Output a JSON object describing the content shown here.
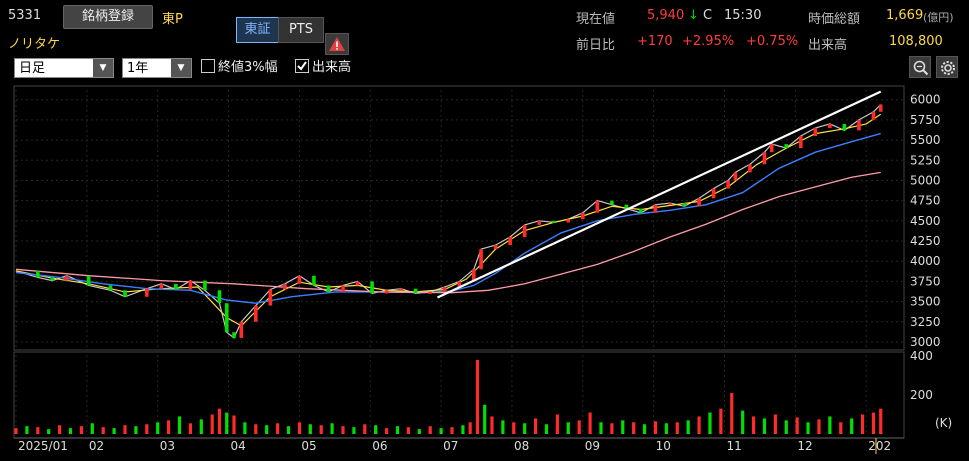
{
  "stock": {
    "code": "5331",
    "register_label": "銘柄登録",
    "market": "東P",
    "name": "ノリタケ"
  },
  "exchange_tabs": {
    "tse": "東証",
    "pts": "PTS"
  },
  "quote": {
    "price_label": "現在値",
    "price": "5,940",
    "direction": "↓",
    "flag": "C",
    "time": "15:30",
    "change_label": "前日比",
    "change": "+170",
    "change_pct": "+2.95%",
    "change_pct2": "+0.75%",
    "mcap_label": "時価総額",
    "mcap": "1,669",
    "mcap_unit": "(億円)",
    "volume_label": "出来高",
    "volume": "108,800"
  },
  "controls": {
    "period": "日足",
    "range": "1年",
    "opt1": "終値3%幅",
    "opt1_checked": false,
    "opt2": "出来高",
    "opt2_checked": true
  },
  "icons": {
    "warning": "warning-icon",
    "zoom": "zoom-icon",
    "settings": "gear-icon"
  },
  "colors": {
    "up": "#ff2a2a",
    "down": "#00e000",
    "ma_short": "#ffe040",
    "ma_mid": "#3a7fff",
    "ma_long": "#ff9aa8",
    "trendline": "#ffffff"
  },
  "chart_data": {
    "type": "line",
    "y_ticks": [
      "6000",
      "5750",
      "5500",
      "5250",
      "5000",
      "4750",
      "4500",
      "4250",
      "4000",
      "3750",
      "3500",
      "3250",
      "3000"
    ],
    "ylim": [
      2950,
      6120
    ],
    "x_ticks": [
      "2025/01",
      "02",
      "03",
      "04",
      "05",
      "06",
      "07",
      "08",
      "09",
      "10",
      "11",
      "12",
      "202"
    ],
    "volume_ticks": [
      "400",
      "200"
    ],
    "volume_unit": "(K)",
    "volume_ylim": [
      0,
      400
    ],
    "price_series": [
      {
        "name": "close",
        "points": [
          [
            0,
            3880
          ],
          [
            6,
            3800
          ],
          [
            10,
            3760
          ],
          [
            14,
            3820
          ],
          [
            20,
            3700
          ],
          [
            26,
            3640
          ],
          [
            30,
            3560
          ],
          [
            36,
            3660
          ],
          [
            40,
            3720
          ],
          [
            44,
            3650
          ],
          [
            48,
            3760
          ],
          [
            52,
            3640
          ],
          [
            56,
            3480
          ],
          [
            58,
            3120
          ],
          [
            60,
            3050
          ],
          [
            62,
            3250
          ],
          [
            66,
            3450
          ],
          [
            70,
            3650
          ],
          [
            74,
            3720
          ],
          [
            78,
            3820
          ],
          [
            82,
            3700
          ],
          [
            86,
            3620
          ],
          [
            90,
            3700
          ],
          [
            94,
            3750
          ],
          [
            98,
            3600
          ],
          [
            102,
            3640
          ],
          [
            106,
            3660
          ],
          [
            110,
            3600
          ],
          [
            114,
            3620
          ],
          [
            118,
            3680
          ],
          [
            122,
            3750
          ],
          [
            126,
            3900
          ],
          [
            128,
            4150
          ],
          [
            132,
            4200
          ],
          [
            136,
            4300
          ],
          [
            140,
            4450
          ],
          [
            144,
            4500
          ],
          [
            148,
            4480
          ],
          [
            152,
            4520
          ],
          [
            156,
            4600
          ],
          [
            160,
            4750
          ],
          [
            164,
            4700
          ],
          [
            168,
            4650
          ],
          [
            172,
            4600
          ],
          [
            176,
            4700
          ],
          [
            180,
            4720
          ],
          [
            184,
            4680
          ],
          [
            188,
            4780
          ],
          [
            192,
            4900
          ],
          [
            196,
            5000
          ],
          [
            198,
            5100
          ],
          [
            202,
            5200
          ],
          [
            206,
            5350
          ],
          [
            208,
            5450
          ],
          [
            212,
            5400
          ],
          [
            216,
            5550
          ],
          [
            220,
            5650
          ],
          [
            224,
            5700
          ],
          [
            228,
            5620
          ],
          [
            232,
            5750
          ],
          [
            236,
            5850
          ],
          [
            238,
            5940
          ]
        ]
      },
      {
        "name": "ma_short",
        "points": [
          [
            0,
            3880
          ],
          [
            10,
            3790
          ],
          [
            20,
            3720
          ],
          [
            30,
            3620
          ],
          [
            40,
            3660
          ],
          [
            50,
            3680
          ],
          [
            58,
            3300
          ],
          [
            62,
            3200
          ],
          [
            70,
            3560
          ],
          [
            78,
            3740
          ],
          [
            86,
            3680
          ],
          [
            94,
            3700
          ],
          [
            102,
            3640
          ],
          [
            110,
            3620
          ],
          [
            118,
            3650
          ],
          [
            124,
            3780
          ],
          [
            128,
            3960
          ],
          [
            132,
            4150
          ],
          [
            140,
            4380
          ],
          [
            148,
            4480
          ],
          [
            156,
            4560
          ],
          [
            164,
            4680
          ],
          [
            172,
            4640
          ],
          [
            180,
            4690
          ],
          [
            188,
            4740
          ],
          [
            196,
            4920
          ],
          [
            204,
            5200
          ],
          [
            212,
            5400
          ],
          [
            220,
            5580
          ],
          [
            228,
            5640
          ],
          [
            234,
            5700
          ],
          [
            238,
            5820
          ]
        ]
      },
      {
        "name": "ma_mid",
        "points": [
          [
            0,
            3860
          ],
          [
            12,
            3800
          ],
          [
            24,
            3720
          ],
          [
            36,
            3660
          ],
          [
            48,
            3640
          ],
          [
            58,
            3520
          ],
          [
            66,
            3480
          ],
          [
            76,
            3560
          ],
          [
            88,
            3620
          ],
          [
            100,
            3620
          ],
          [
            112,
            3610
          ],
          [
            120,
            3630
          ],
          [
            126,
            3700
          ],
          [
            132,
            3850
          ],
          [
            140,
            4100
          ],
          [
            150,
            4350
          ],
          [
            160,
            4500
          ],
          [
            170,
            4580
          ],
          [
            180,
            4630
          ],
          [
            190,
            4700
          ],
          [
            200,
            4850
          ],
          [
            210,
            5150
          ],
          [
            220,
            5350
          ],
          [
            230,
            5480
          ],
          [
            238,
            5580
          ]
        ]
      },
      {
        "name": "ma_long",
        "points": [
          [
            0,
            3900
          ],
          [
            20,
            3820
          ],
          [
            40,
            3760
          ],
          [
            60,
            3720
          ],
          [
            80,
            3660
          ],
          [
            100,
            3620
          ],
          [
            120,
            3610
          ],
          [
            130,
            3640
          ],
          [
            140,
            3720
          ],
          [
            150,
            3840
          ],
          [
            160,
            3960
          ],
          [
            170,
            4120
          ],
          [
            180,
            4300
          ],
          [
            190,
            4460
          ],
          [
            200,
            4640
          ],
          [
            210,
            4800
          ],
          [
            220,
            4920
          ],
          [
            230,
            5040
          ],
          [
            238,
            5100
          ]
        ]
      }
    ],
    "trendline": {
      "from": [
        116,
        3550
      ],
      "to": [
        238,
        6100
      ]
    },
    "volume_bars": [
      [
        0,
        30,
        1
      ],
      [
        3,
        40,
        0
      ],
      [
        6,
        35,
        1
      ],
      [
        9,
        25,
        0
      ],
      [
        12,
        45,
        1
      ],
      [
        15,
        30,
        0
      ],
      [
        18,
        40,
        1
      ],
      [
        21,
        55,
        0
      ],
      [
        24,
        35,
        1
      ],
      [
        27,
        30,
        0
      ],
      [
        30,
        45,
        1
      ],
      [
        33,
        40,
        0
      ],
      [
        36,
        50,
        1
      ],
      [
        39,
        60,
        0
      ],
      [
        42,
        70,
        1
      ],
      [
        45,
        90,
        0
      ],
      [
        48,
        55,
        1
      ],
      [
        51,
        75,
        0
      ],
      [
        54,
        100,
        1
      ],
      [
        56,
        130,
        1
      ],
      [
        58,
        110,
        0
      ],
      [
        60,
        95,
        1
      ],
      [
        63,
        60,
        0
      ],
      [
        66,
        50,
        1
      ],
      [
        69,
        45,
        0
      ],
      [
        72,
        55,
        1
      ],
      [
        75,
        40,
        0
      ],
      [
        78,
        60,
        1
      ],
      [
        81,
        50,
        0
      ],
      [
        84,
        45,
        1
      ],
      [
        87,
        55,
        0
      ],
      [
        90,
        40,
        1
      ],
      [
        93,
        35,
        0
      ],
      [
        96,
        50,
        1
      ],
      [
        99,
        45,
        0
      ],
      [
        102,
        30,
        1
      ],
      [
        105,
        40,
        0
      ],
      [
        108,
        35,
        1
      ],
      [
        111,
        25,
        0
      ],
      [
        114,
        40,
        1
      ],
      [
        117,
        30,
        0
      ],
      [
        120,
        35,
        1
      ],
      [
        123,
        45,
        0
      ],
      [
        125,
        60,
        1
      ],
      [
        127,
        380,
        1
      ],
      [
        129,
        150,
        0
      ],
      [
        131,
        90,
        1
      ],
      [
        134,
        70,
        0
      ],
      [
        137,
        60,
        1
      ],
      [
        140,
        55,
        0
      ],
      [
        143,
        80,
        1
      ],
      [
        146,
        50,
        0
      ],
      [
        149,
        100,
        1
      ],
      [
        152,
        60,
        0
      ],
      [
        155,
        70,
        1
      ],
      [
        158,
        110,
        1
      ],
      [
        161,
        60,
        0
      ],
      [
        164,
        55,
        1
      ],
      [
        167,
        70,
        0
      ],
      [
        170,
        60,
        1
      ],
      [
        173,
        50,
        0
      ],
      [
        176,
        65,
        1
      ],
      [
        179,
        55,
        0
      ],
      [
        182,
        60,
        1
      ],
      [
        185,
        70,
        0
      ],
      [
        188,
        90,
        1
      ],
      [
        191,
        110,
        0
      ],
      [
        194,
        130,
        1
      ],
      [
        197,
        210,
        1
      ],
      [
        200,
        120,
        0
      ],
      [
        203,
        90,
        1
      ],
      [
        206,
        80,
        0
      ],
      [
        209,
        100,
        1
      ],
      [
        212,
        70,
        0
      ],
      [
        215,
        85,
        1
      ],
      [
        218,
        60,
        0
      ],
      [
        221,
        75,
        1
      ],
      [
        224,
        90,
        0
      ],
      [
        227,
        60,
        1
      ],
      [
        230,
        80,
        0
      ],
      [
        233,
        100,
        1
      ],
      [
        236,
        110,
        1
      ],
      [
        238,
        130,
        1
      ]
    ]
  }
}
